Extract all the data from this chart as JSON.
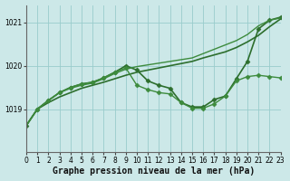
{
  "title": "Graphe pression niveau de la mer (hPa)",
  "background_color": "#cce8e8",
  "grid_color": "#99cccc",
  "xlim": [
    0,
    23
  ],
  "ylim": [
    1018.0,
    1021.4
  ],
  "yticks": [
    1019,
    1020,
    1021
  ],
  "xticks": [
    0,
    1,
    2,
    3,
    4,
    5,
    6,
    7,
    8,
    9,
    10,
    11,
    12,
    13,
    14,
    15,
    16,
    17,
    18,
    19,
    20,
    21,
    22,
    23
  ],
  "series": [
    {
      "x": [
        0,
        1,
        2,
        3,
        4,
        5,
        6,
        7,
        8,
        9,
        10,
        11,
        12,
        13,
        14,
        15,
        16,
        17,
        18,
        19,
        20,
        21,
        22,
        23
      ],
      "y": [
        1018.62,
        1019.0,
        1019.15,
        1019.28,
        1019.38,
        1019.48,
        1019.55,
        1019.62,
        1019.7,
        1019.78,
        1019.85,
        1019.9,
        1019.95,
        1020.0,
        1020.05,
        1020.1,
        1020.18,
        1020.25,
        1020.32,
        1020.42,
        1020.55,
        1020.7,
        1020.9,
        1021.08
      ],
      "color": "#2d6e2d",
      "lw": 1.2,
      "marker": null
    },
    {
      "x": [
        0,
        1,
        2,
        3,
        4,
        5,
        6,
        7,
        8,
        9,
        10,
        11,
        12,
        13,
        14,
        15,
        16,
        17,
        18,
        19,
        20,
        21,
        22,
        23
      ],
      "y": [
        1018.62,
        1019.0,
        1019.2,
        1019.38,
        1019.5,
        1019.58,
        1019.62,
        1019.72,
        1019.85,
        1020.0,
        1019.9,
        1019.65,
        1019.55,
        1019.48,
        1019.15,
        1019.05,
        1019.05,
        1019.22,
        1019.3,
        1019.7,
        1020.1,
        1020.85,
        1021.05,
        1021.12
      ],
      "color": "#2d6e2d",
      "lw": 1.2,
      "marker": "D"
    },
    {
      "x": [
        1,
        2,
        3,
        4,
        5,
        6,
        7,
        8,
        9,
        10,
        11,
        12,
        13,
        14,
        15,
        16,
        17,
        18,
        19,
        20,
        21,
        22,
        23
      ],
      "y": [
        1019.0,
        1019.2,
        1019.38,
        1019.5,
        1019.58,
        1019.62,
        1019.72,
        1019.85,
        1019.95,
        1019.55,
        1019.45,
        1019.38,
        1019.35,
        1019.15,
        1019.02,
        1019.02,
        1019.12,
        1019.3,
        1019.65,
        1019.75,
        1019.78,
        1019.75,
        1019.72
      ],
      "color": "#3d8b3d",
      "lw": 1.0,
      "marker": "D"
    },
    {
      "x": [
        0,
        1,
        2,
        3,
        4,
        5,
        6,
        7,
        8,
        9,
        10,
        11,
        12,
        13,
        14,
        15,
        16,
        17,
        18,
        19,
        20,
        21,
        22,
        23
      ],
      "y": [
        1018.62,
        1019.0,
        1019.2,
        1019.38,
        1019.48,
        1019.55,
        1019.6,
        1019.7,
        1019.82,
        1019.92,
        1019.98,
        1020.02,
        1020.06,
        1020.1,
        1020.14,
        1020.18,
        1020.28,
        1020.38,
        1020.48,
        1020.58,
        1020.72,
        1020.92,
        1021.05,
        1021.1
      ],
      "color": "#3d8b3d",
      "lw": 1.0,
      "marker": null
    }
  ],
  "ylabel_fontsize": 6,
  "xlabel_fontsize": 7,
  "tick_fontsize": 5.5
}
